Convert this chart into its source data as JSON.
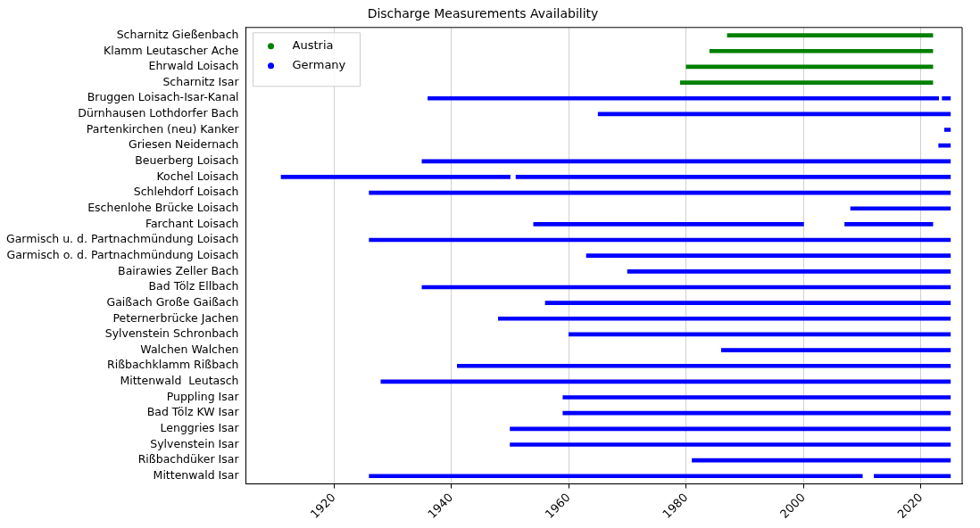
{
  "chart_data": {
    "type": "bar",
    "orientation": "horizontal",
    "title": "Discharge Measurements Availability",
    "categories": [
      "Scharnitz Gießenbach",
      "Klamm Leutascher Ache",
      "Ehrwald Loisach",
      "Scharnitz Isar",
      "Bruggen Loisach-Isar-Kanal",
      "Dürnhausen Lothdorfer Bach",
      "Partenkirchen (neu) Kanker",
      "Griesen Neidernach",
      "Beuerberg Loisach",
      "Kochel Loisach",
      "Schlehdorf Loisach",
      "Eschenlohe Brücke Loisach",
      "Farchant Loisach",
      "Garmisch u. d. Partnachmündung Loisach",
      "Garmisch o. d. Partnachmündung Loisach",
      "Bairawies Zeller Bach",
      "Bad Tölz Ellbach",
      "Gaißach Große Gaißach",
      "Peternerbrücke Jachen",
      "Sylvenstein Schronbach",
      "Walchen Walchen",
      "Rißbachklamm Rißbach",
      "Mittenwald  Leutasch",
      "Puppling Isar",
      "Bad Tölz KW Isar",
      "Lenggries Isar",
      "Sylvenstein Isar",
      "Rißbachdüker Isar",
      "Mittenwald Isar"
    ],
    "series": [
      {
        "name": "Austria",
        "color": "#008000",
        "base": [
          1987,
          1984,
          1980,
          1979,
          null,
          null,
          null,
          null,
          null,
          null,
          null,
          null,
          null,
          null,
          null,
          null,
          null,
          null,
          null,
          null,
          null,
          null,
          null,
          null,
          null,
          null,
          null,
          null,
          null
        ],
        "values": [
          35,
          38,
          42,
          43,
          null,
          null,
          null,
          null,
          null,
          null,
          null,
          null,
          null,
          null,
          null,
          null,
          null,
          null,
          null,
          null,
          null,
          null,
          null,
          null,
          null,
          null,
          null,
          null,
          null
        ]
      },
      {
        "name": "Germany",
        "color": "#0000ff",
        "base": [
          null,
          null,
          null,
          null,
          1936,
          1965,
          2024,
          2023,
          1935,
          1911,
          1926,
          2008,
          1954,
          1926,
          1963,
          1970,
          1935,
          1956,
          1948,
          1960,
          1986,
          1941,
          1928,
          1959,
          1959,
          1950,
          1950,
          1981,
          1926
        ],
        "values": [
          null,
          null,
          null,
          null,
          87,
          60,
          1,
          2,
          90,
          39,
          99,
          17,
          46,
          99,
          62,
          55,
          90,
          69,
          77,
          65,
          39,
          84,
          97,
          66,
          66,
          75,
          75,
          44,
          84
        ]
      },
      {
        "color": "#0000ff",
        "base": [
          null,
          null,
          null,
          null,
          2023.6,
          null,
          null,
          null,
          null,
          1951,
          null,
          null,
          2007,
          null,
          null,
          null,
          null,
          null,
          null,
          null,
          null,
          null,
          null,
          null,
          null,
          null,
          null,
          null,
          2012
        ],
        "values": [
          null,
          null,
          null,
          null,
          1.4,
          null,
          null,
          null,
          null,
          74,
          null,
          null,
          15,
          null,
          null,
          null,
          null,
          null,
          null,
          null,
          null,
          null,
          null,
          null,
          null,
          null,
          null,
          null,
          13
        ]
      }
    ],
    "xlim": [
      1905,
      2027
    ],
    "xticks": [
      1920,
      1940,
      1960,
      1980,
      2000,
      2020
    ],
    "grid": "x",
    "legend": "top left"
  }
}
